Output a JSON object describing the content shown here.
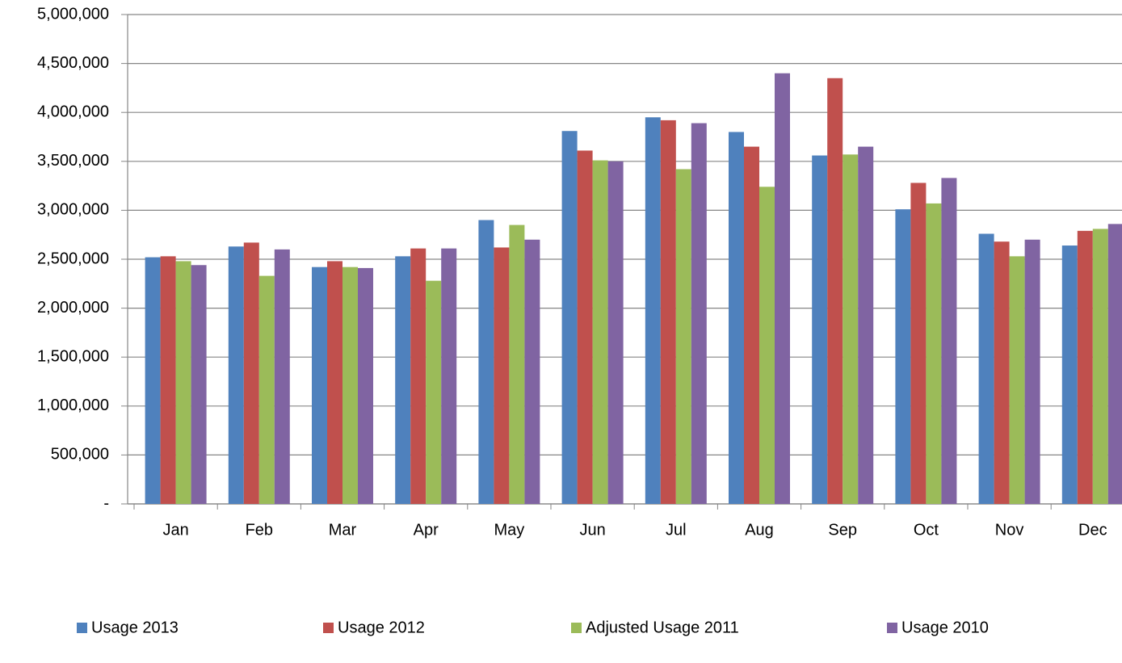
{
  "chart_data": {
    "type": "bar",
    "categories": [
      "Jan",
      "Feb",
      "Mar",
      "Apr",
      "May",
      "Jun",
      "Jul",
      "Aug",
      "Sep",
      "Oct",
      "Nov",
      "Dec"
    ],
    "series": [
      {
        "name": "Usage 2013",
        "color": "#4f81bd",
        "values": [
          2520000,
          2630000,
          2420000,
          2530000,
          2900000,
          3810000,
          3950000,
          3800000,
          3560000,
          3010000,
          2760000,
          2640000
        ]
      },
      {
        "name": "Usage 2012",
        "color": "#c0504d",
        "values": [
          2530000,
          2670000,
          2480000,
          2610000,
          2620000,
          3610000,
          3920000,
          3650000,
          4350000,
          3280000,
          2680000,
          2790000
        ]
      },
      {
        "name": "Adjusted Usage 2011",
        "color": "#9bbb59",
        "values": [
          2480000,
          2330000,
          2420000,
          2280000,
          2850000,
          3510000,
          3420000,
          3240000,
          3570000,
          3070000,
          2530000,
          2810000
        ]
      },
      {
        "name": "Usage 2010",
        "color": "#8064a2",
        "values": [
          2440000,
          2600000,
          2410000,
          2610000,
          2700000,
          3500000,
          3890000,
          4400000,
          3650000,
          3330000,
          2700000,
          2860000
        ]
      }
    ],
    "ylim": [
      0,
      5000000
    ],
    "yticks": [
      {
        "value": 0,
        "label": "-"
      },
      {
        "value": 500000,
        "label": "500,000"
      },
      {
        "value": 1000000,
        "label": "1,000,000"
      },
      {
        "value": 1500000,
        "label": "1,500,000"
      },
      {
        "value": 2000000,
        "label": "2,000,000"
      },
      {
        "value": 2500000,
        "label": "2,500,000"
      },
      {
        "value": 3000000,
        "label": "3,000,000"
      },
      {
        "value": 3500000,
        "label": "3,500,000"
      },
      {
        "value": 4000000,
        "label": "4,000,000"
      },
      {
        "value": 4500000,
        "label": "4,500,000"
      },
      {
        "value": 5000000,
        "label": "5,000,000"
      }
    ],
    "grid": true,
    "legend": "bottom"
  }
}
